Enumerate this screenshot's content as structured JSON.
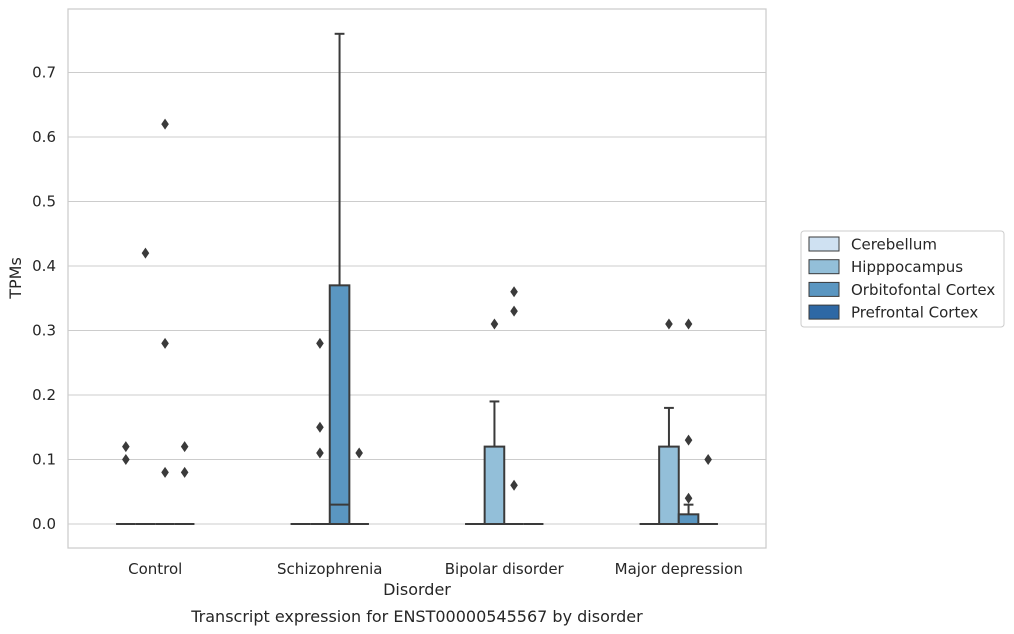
{
  "chart_data": {
    "type": "box",
    "title": "Transcript expression for ENST00000545567 by disorder",
    "xlabel": "Disorder",
    "ylabel": "TPMs",
    "ylim": [
      -0.038,
      0.8
    ],
    "yticks": [
      0.0,
      0.1,
      0.2,
      0.3,
      0.4,
      0.5,
      0.6,
      0.7
    ],
    "ytick_labels": [
      "0.0",
      "0.1",
      "0.2",
      "0.3",
      "0.4",
      "0.5",
      "0.6",
      "0.7"
    ],
    "grid": "horizontal",
    "legend_position": "right",
    "categories": [
      "Control",
      "Schizophrenia",
      "Bipolar disorder",
      "Major depression"
    ],
    "series": [
      {
        "name": "Cerebellum",
        "color": "#cfe1f2",
        "boxes": [
          {
            "q1": 0,
            "median": 0,
            "q3": 0,
            "whisker_low": 0,
            "whisker_high": 0,
            "outliers": [
              0.1,
              0.12
            ]
          },
          {
            "q1": 0,
            "median": 0,
            "q3": 0,
            "whisker_low": 0,
            "whisker_high": 0,
            "outliers": []
          },
          {
            "q1": 0,
            "median": 0,
            "q3": 0,
            "whisker_low": 0,
            "whisker_high": 0,
            "outliers": []
          },
          {
            "q1": 0,
            "median": 0,
            "q3": 0,
            "whisker_low": 0,
            "whisker_high": 0,
            "outliers": []
          }
        ]
      },
      {
        "name": "Hipppocampus",
        "color": "#93bfd9",
        "boxes": [
          {
            "q1": 0,
            "median": 0,
            "q3": 0,
            "whisker_low": 0,
            "whisker_high": 0,
            "outliers": [
              0.42
            ]
          },
          {
            "q1": 0,
            "median": 0,
            "q3": 0,
            "whisker_low": 0,
            "whisker_high": 0,
            "outliers": [
              0.28,
              0.15,
              0.11
            ]
          },
          {
            "q1": 0,
            "median": 0,
            "q3": 0.12,
            "whisker_low": 0,
            "whisker_high": 0.19,
            "outliers": [
              0.31
            ]
          },
          {
            "q1": 0,
            "median": 0,
            "q3": 0.12,
            "whisker_low": 0,
            "whisker_high": 0.18,
            "outliers": [
              0.31
            ]
          }
        ]
      },
      {
        "name": "Orbitofontal Cortex",
        "color": "#5a96c1",
        "boxes": [
          {
            "q1": 0,
            "median": 0,
            "q3": 0,
            "whisker_low": 0,
            "whisker_high": 0,
            "outliers": [
              0.62,
              0.28,
              0.08
            ]
          },
          {
            "q1": 0,
            "median": 0.03,
            "q3": 0.37,
            "whisker_low": 0,
            "whisker_high": 0.76,
            "outliers": []
          },
          {
            "q1": 0,
            "median": 0,
            "q3": 0,
            "whisker_low": 0,
            "whisker_high": 0,
            "outliers": [
              0.36,
              0.33,
              0.06
            ]
          },
          {
            "q1": 0,
            "median": 0,
            "q3": 0.015,
            "whisker_low": 0,
            "whisker_high": 0.03,
            "outliers": [
              0.31,
              0.13,
              0.04
            ]
          }
        ]
      },
      {
        "name": "Prefrontal Cortex",
        "color": "#2e68a5",
        "boxes": [
          {
            "q1": 0,
            "median": 0,
            "q3": 0,
            "whisker_low": 0,
            "whisker_high": 0,
            "outliers": [
              0.12,
              0.08
            ]
          },
          {
            "q1": 0,
            "median": 0,
            "q3": 0,
            "whisker_low": 0,
            "whisker_high": 0,
            "outliers": [
              0.11
            ]
          },
          {
            "q1": 0,
            "median": 0,
            "q3": 0,
            "whisker_low": 0,
            "whisker_high": 0,
            "outliers": []
          },
          {
            "q1": 0,
            "median": 0,
            "q3": 0,
            "whisker_low": 0,
            "whisker_high": 0,
            "outliers": [
              0.1
            ]
          }
        ]
      }
    ]
  }
}
